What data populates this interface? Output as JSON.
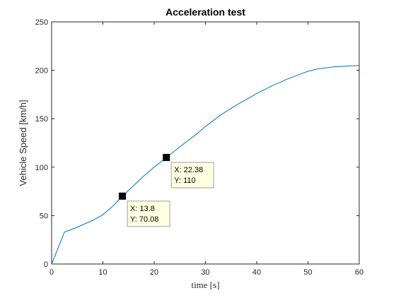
{
  "chart_data": {
    "type": "line",
    "title": "Acceleration test",
    "xlabel": "time [s]",
    "ylabel": "Vehicle Speed [km/h]",
    "xlim": [
      0,
      60
    ],
    "ylim": [
      0,
      250
    ],
    "xticks": [
      0,
      10,
      20,
      30,
      40,
      50,
      60
    ],
    "yticks": [
      0,
      50,
      100,
      150,
      200,
      250
    ],
    "grid": false,
    "series": [
      {
        "color": "#0072bd",
        "x": [
          0,
          1,
          2.5,
          3,
          5,
          8,
          10,
          12,
          13.8,
          16,
          18,
          20,
          22.38,
          25,
          28,
          30,
          33,
          36,
          40,
          43,
          46,
          48,
          50,
          52,
          55,
          58,
          60
        ],
        "y": [
          0,
          13,
          33,
          34,
          38,
          45,
          51,
          60,
          70.08,
          81,
          91,
          100,
          110,
          121,
          133,
          142,
          154,
          164,
          176,
          184,
          191,
          195,
          199,
          201.5,
          203.5,
          204.5,
          205
        ]
      }
    ],
    "datatips": [
      {
        "x": 13.8,
        "y": 70.08,
        "x_text": "X: 13.8",
        "y_text": "Y: 70.08"
      },
      {
        "x": 22.38,
        "y": 110,
        "x_text": "X: 22.38",
        "y_text": "Y: 110"
      }
    ],
    "colors": {
      "line": "#0072bd",
      "axes": "#262626",
      "datatip_fill": "#ffffe1",
      "datatip_border": "#a0a0a0",
      "marker": "#000000"
    }
  }
}
